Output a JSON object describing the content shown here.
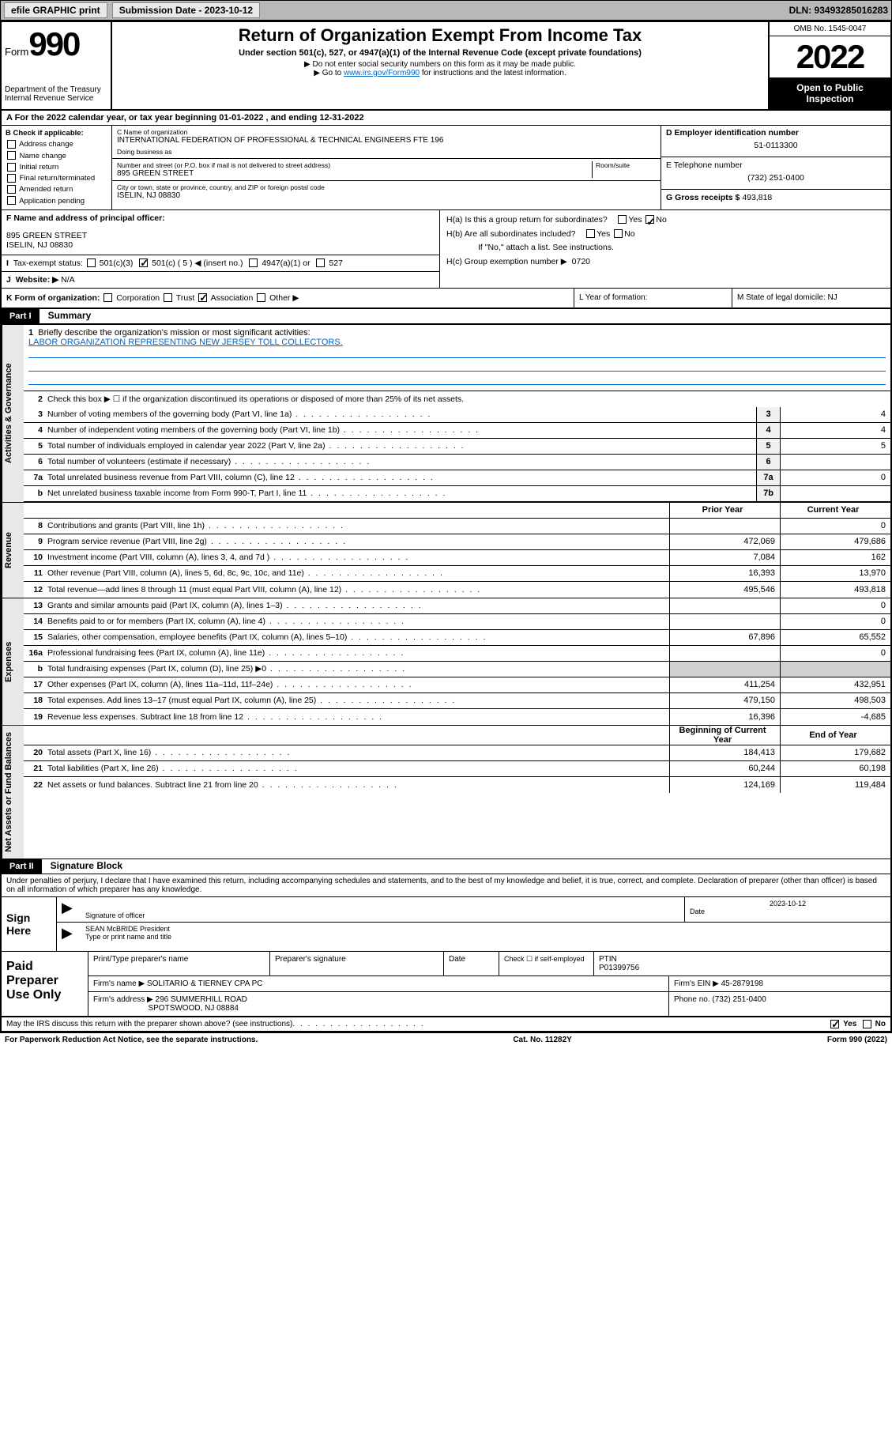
{
  "top": {
    "efile": "efile GRAPHIC print",
    "sub_label": "Submission Date - 2023-10-12",
    "dln": "DLN: 93493285016283"
  },
  "hdr": {
    "form_label": "Form",
    "form_no": "990",
    "dept": "Department of the Treasury Internal Revenue Service",
    "title": "Return of Organization Exempt From Income Tax",
    "sub": "Under section 501(c), 527, or 4947(a)(1) of the Internal Revenue Code (except private foundations)",
    "note1": "▶ Do not enter social security numbers on this form as it may be made public.",
    "note2_pre": "▶ Go to ",
    "note2_link": "www.irs.gov/Form990",
    "note2_post": " for instructions and the latest information.",
    "omb": "OMB No. 1545-0047",
    "year": "2022",
    "inspect": "Open to Public Inspection"
  },
  "A": {
    "text": "A For the 2022 calendar year, or tax year beginning 01-01-2022    , and ending 12-31-2022"
  },
  "B": {
    "label": "B Check if applicable:",
    "opts": [
      "Address change",
      "Name change",
      "Initial return",
      "Final return/terminated",
      "Amended return",
      "Application pending"
    ]
  },
  "C": {
    "name_lbl": "C Name of organization",
    "name": "INTERNATIONAL FEDERATION OF PROFESSIONAL & TECHNICAL ENGINEERS FTE 196",
    "dba_lbl": "Doing business as",
    "addr_lbl": "Number and street (or P.O. box if mail is not delivered to street address)",
    "room_lbl": "Room/suite",
    "addr": "895 GREEN STREET",
    "city_lbl": "City or town, state or province, country, and ZIP or foreign postal code",
    "city": "ISELIN, NJ  08830"
  },
  "D": {
    "lbl": "D Employer identification number",
    "val": "51-0113300"
  },
  "E": {
    "lbl": "E Telephone number",
    "val": "(732) 251-0400"
  },
  "G": {
    "lbl": "G Gross receipts $",
    "val": "493,818"
  },
  "F": {
    "lbl": "F Name and address of principal officer:",
    "addr1": "895 GREEN STREET",
    "addr2": "ISELIN, NJ  08830"
  },
  "H": {
    "a": "H(a)  Is this a group return for subordinates?",
    "b": "H(b)  Are all subordinates included?",
    "b_note": "If \"No,\" attach a list. See instructions.",
    "c": "H(c)  Group exemption number ▶",
    "c_val": "0720"
  },
  "I": {
    "lbl": "Tax-exempt status:",
    "opts": [
      "501(c)(3)",
      "501(c) ( 5 ) ◀ (insert no.)",
      "4947(a)(1) or",
      "527"
    ]
  },
  "J": {
    "lbl": "Website: ▶",
    "val": "N/A"
  },
  "K": {
    "lbl": "K Form of organization:",
    "opts": [
      "Corporation",
      "Trust",
      "Association",
      "Other ▶"
    ],
    "L": "L Year of formation:",
    "M": "M State of legal domicile: NJ"
  },
  "part1": {
    "tag": "Part I",
    "title": "Summary"
  },
  "tabs": {
    "gov": "Activities & Governance",
    "rev": "Revenue",
    "exp": "Expenses",
    "net": "Net Assets or Fund Balances"
  },
  "l1": {
    "lbl": "Briefly describe the organization's mission or most significant activities:",
    "val": "LABOR ORGANIZATION REPRESENTING NEW JERSEY TOLL COLLECTORS."
  },
  "l2": "Check this box ▶ ☐  if the organization discontinued its operations or disposed of more than 25% of its net assets.",
  "lines_gov": [
    {
      "n": "3",
      "t": "Number of voting members of the governing body (Part VI, line 1a)",
      "b": "3",
      "v": "4"
    },
    {
      "n": "4",
      "t": "Number of independent voting members of the governing body (Part VI, line 1b)",
      "b": "4",
      "v": "4"
    },
    {
      "n": "5",
      "t": "Total number of individuals employed in calendar year 2022 (Part V, line 2a)",
      "b": "5",
      "v": "5"
    },
    {
      "n": "6",
      "t": "Total number of volunteers (estimate if necessary)",
      "b": "6",
      "v": ""
    },
    {
      "n": "7a",
      "t": "Total unrelated business revenue from Part VIII, column (C), line 12",
      "b": "7a",
      "v": "0"
    },
    {
      "n": "b",
      "t": "Net unrelated business taxable income from Form 990-T, Part I, line 11",
      "b": "7b",
      "v": ""
    }
  ],
  "col_hdr": {
    "prior": "Prior Year",
    "curr": "Current Year"
  },
  "lines_rev": [
    {
      "n": "8",
      "t": "Contributions and grants (Part VIII, line 1h)",
      "p": "",
      "c": "0"
    },
    {
      "n": "9",
      "t": "Program service revenue (Part VIII, line 2g)",
      "p": "472,069",
      "c": "479,686"
    },
    {
      "n": "10",
      "t": "Investment income (Part VIII, column (A), lines 3, 4, and 7d )",
      "p": "7,084",
      "c": "162"
    },
    {
      "n": "11",
      "t": "Other revenue (Part VIII, column (A), lines 5, 6d, 8c, 9c, 10c, and 11e)",
      "p": "16,393",
      "c": "13,970"
    },
    {
      "n": "12",
      "t": "Total revenue—add lines 8 through 11 (must equal Part VIII, column (A), line 12)",
      "p": "495,546",
      "c": "493,818"
    }
  ],
  "lines_exp": [
    {
      "n": "13",
      "t": "Grants and similar amounts paid (Part IX, column (A), lines 1–3)",
      "p": "",
      "c": "0"
    },
    {
      "n": "14",
      "t": "Benefits paid to or for members (Part IX, column (A), line 4)",
      "p": "",
      "c": "0"
    },
    {
      "n": "15",
      "t": "Salaries, other compensation, employee benefits (Part IX, column (A), lines 5–10)",
      "p": "67,896",
      "c": "65,552"
    },
    {
      "n": "16a",
      "t": "Professional fundraising fees (Part IX, column (A), line 11e)",
      "p": "",
      "c": "0"
    },
    {
      "n": "b",
      "t": "Total fundraising expenses (Part IX, column (D), line 25) ▶0",
      "p": "",
      "c": "",
      "shade": true
    },
    {
      "n": "17",
      "t": "Other expenses (Part IX, column (A), lines 11a–11d, 11f–24e)",
      "p": "411,254",
      "c": "432,951"
    },
    {
      "n": "18",
      "t": "Total expenses. Add lines 13–17 (must equal Part IX, column (A), line 25)",
      "p": "479,150",
      "c": "498,503"
    },
    {
      "n": "19",
      "t": "Revenue less expenses. Subtract line 18 from line 12",
      "p": "16,396",
      "c": "-4,685"
    }
  ],
  "col_hdr2": {
    "beg": "Beginning of Current Year",
    "end": "End of Year"
  },
  "lines_net": [
    {
      "n": "20",
      "t": "Total assets (Part X, line 16)",
      "p": "184,413",
      "c": "179,682"
    },
    {
      "n": "21",
      "t": "Total liabilities (Part X, line 26)",
      "p": "60,244",
      "c": "60,198"
    },
    {
      "n": "22",
      "t": "Net assets or fund balances. Subtract line 21 from line 20",
      "p": "124,169",
      "c": "119,484"
    }
  ],
  "part2": {
    "tag": "Part II",
    "title": "Signature Block"
  },
  "sig_note": "Under penalties of perjury, I declare that I have examined this return, including accompanying schedules and statements, and to the best of my knowledge and belief, it is true, correct, and complete. Declaration of preparer (other than officer) is based on all information of which preparer has any knowledge.",
  "sign": {
    "here": "Sign Here",
    "sig_lbl": "Signature of officer",
    "date_lbl": "Date",
    "date_val": "2023-10-12",
    "name": "SEAN McBRIDE President",
    "name_lbl": "Type or print name and title"
  },
  "paid": {
    "lbl": "Paid Preparer Use Only",
    "prep_name_lbl": "Print/Type preparer's name",
    "prep_sig_lbl": "Preparer's signature",
    "date_lbl": "Date",
    "check_lbl": "Check ☐ if self-employed",
    "ptin_lbl": "PTIN",
    "ptin": "P01399756",
    "firm_name_lbl": "Firm's name   ▶",
    "firm_name": "SOLITARIO & TIERNEY CPA PC",
    "firm_ein_lbl": "Firm's EIN ▶",
    "firm_ein": "45-2879198",
    "firm_addr_lbl": "Firm's address ▶",
    "firm_addr1": "296 SUMMERHILL ROAD",
    "firm_addr2": "SPOTSWOOD, NJ  08884",
    "phone_lbl": "Phone no.",
    "phone": "(732) 251-0400"
  },
  "footer": {
    "discuss": "May the IRS discuss this return with the preparer shown above? (see instructions)",
    "yes": "Yes",
    "no": "No",
    "pra": "For Paperwork Reduction Act Notice, see the separate instructions.",
    "cat": "Cat. No. 11282Y",
    "form": "Form 990 (2022)"
  }
}
